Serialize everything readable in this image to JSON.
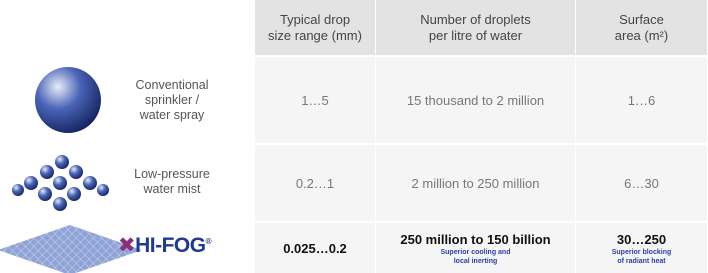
{
  "header": {
    "columns": [
      [
        "Typical drop",
        "size range (mm)"
      ],
      [
        "Number of droplets",
        "per litre of water"
      ],
      [
        "Surface",
        "area (m²)"
      ]
    ]
  },
  "rows": [
    {
      "label": [
        "Conventional",
        "sprinkler /",
        "water spray"
      ],
      "cells": [
        {
          "text": "1…5"
        },
        {
          "text": "15 thousand to 2 million"
        },
        {
          "text": "1…6"
        }
      ]
    },
    {
      "label": [
        "Low-pressure",
        "water mist"
      ],
      "cells": [
        {
          "text": "0.2…1"
        },
        {
          "text": "2 million to 250 million"
        },
        {
          "text": "6…30"
        }
      ]
    },
    {
      "logo": "HI-FOG",
      "mark": "®",
      "cells": [
        {
          "text": "0.025…0.2"
        },
        {
          "text": "250 million to 150 billion",
          "note": [
            "Superior cooling and",
            "local inerting"
          ]
        },
        {
          "text": "30…250",
          "note": [
            "Superior blocking",
            "of radiant heat"
          ]
        }
      ]
    }
  ]
}
